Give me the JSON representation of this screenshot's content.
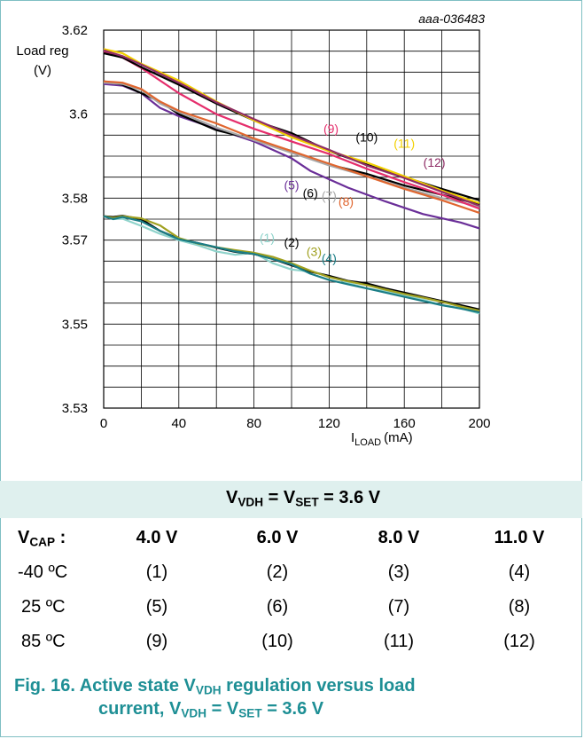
{
  "chart_data": {
    "type": "line",
    "figure_id": "aaa-036483",
    "ylabel_line1": "Load reg",
    "ylabel_line2": "(V)",
    "xlabel_main": "I",
    "xlabel_sub": "LOAD",
    "xlabel_unit": "(mA)",
    "xlim": [
      0,
      200
    ],
    "ylim": [
      3.53,
      3.62
    ],
    "x_ticks": [
      "0",
      "40",
      "80",
      "120",
      "160",
      "200"
    ],
    "y_ticks": [
      "3.53",
      "3.55",
      "3.57",
      "3.58",
      "3.6",
      "3.62"
    ],
    "y_tick_values": [
      3.53,
      3.55,
      3.57,
      3.58,
      3.6,
      3.62
    ],
    "grid": true,
    "series": [
      {
        "name": "(1)",
        "color": "#8fd3cb",
        "x": [
          0,
          5,
          10,
          20,
          30,
          40,
          50,
          60,
          70,
          80,
          90,
          100,
          110,
          120,
          130,
          140,
          150,
          160,
          170,
          180,
          190,
          200
        ],
        "y": [
          3.5757,
          3.575,
          3.5751,
          3.5734,
          3.5715,
          3.57,
          3.5688,
          3.5673,
          3.5665,
          3.567,
          3.5645,
          3.563,
          3.5625,
          3.5615,
          3.5598,
          3.5585,
          3.5578,
          3.5568,
          3.5558,
          3.5545,
          3.5538,
          3.5525
        ]
      },
      {
        "name": "(2)",
        "color": "#000000",
        "x": [
          0,
          5,
          10,
          20,
          30,
          40,
          50,
          60,
          70,
          80,
          90,
          100,
          110,
          120,
          130,
          140,
          150,
          160,
          170,
          180,
          190,
          200
        ],
        "y": [
          3.5757,
          3.5755,
          3.5758,
          3.575,
          3.5722,
          3.5703,
          3.5693,
          3.5682,
          3.5672,
          3.5667,
          3.5655,
          3.564,
          3.5625,
          3.5615,
          3.5603,
          3.5597,
          3.5585,
          3.5575,
          3.5565,
          3.5555,
          3.5545,
          3.5535
        ]
      },
      {
        "name": "(3)",
        "color": "#a0a020",
        "x": [
          0,
          5,
          10,
          20,
          30,
          40,
          50,
          60,
          70,
          80,
          90,
          100,
          110,
          120,
          130,
          140,
          150,
          160,
          170,
          180,
          190,
          200
        ],
        "y": [
          3.5757,
          3.5753,
          3.5757,
          3.5752,
          3.5735,
          3.5705,
          3.5692,
          3.5683,
          3.5676,
          3.567,
          3.566,
          3.5645,
          3.5627,
          3.5612,
          3.5602,
          3.5593,
          3.5582,
          3.5572,
          3.5563,
          3.5553,
          3.5542,
          3.5532
        ]
      },
      {
        "name": "(4)",
        "color": "#1a7d86",
        "x": [
          0,
          5,
          10,
          20,
          30,
          40,
          50,
          60,
          70,
          80,
          90,
          100,
          110,
          120,
          130,
          140,
          150,
          160,
          170,
          180,
          190,
          200
        ],
        "y": [
          3.5757,
          3.575,
          3.5755,
          3.5745,
          3.5722,
          3.5702,
          3.5693,
          3.5683,
          3.5673,
          3.5667,
          3.5655,
          3.5642,
          3.562,
          3.5605,
          3.5595,
          3.5585,
          3.5575,
          3.5565,
          3.5555,
          3.5545,
          3.5537,
          3.5528
        ]
      },
      {
        "name": "(5)",
        "color": "#6a2e98",
        "x": [
          0,
          10,
          20,
          30,
          40,
          60,
          80,
          100,
          110,
          130,
          150,
          170,
          190,
          200
        ],
        "y": [
          3.6072,
          3.6068,
          3.605,
          3.6015,
          3.5995,
          3.5965,
          3.5935,
          3.5895,
          3.5865,
          3.5825,
          3.5792,
          3.5762,
          3.5742,
          3.5728
        ]
      },
      {
        "name": "(6)",
        "color": "#000000",
        "x": [
          0,
          10,
          20,
          30,
          40,
          60,
          80,
          100,
          120,
          140,
          160,
          180,
          200
        ],
        "y": [
          3.6078,
          3.607,
          3.605,
          3.603,
          3.6,
          3.5962,
          3.594,
          3.5912,
          3.588,
          3.5858,
          3.583,
          3.5808,
          3.5785
        ]
      },
      {
        "name": "(7)",
        "color": "#a8a8a8",
        "x": [
          0,
          10,
          20,
          30,
          40,
          60,
          80,
          100,
          120,
          140,
          160,
          180,
          200
        ],
        "y": [
          3.6075,
          3.6072,
          3.6058,
          3.6025,
          3.6005,
          3.5968,
          3.5938,
          3.5908,
          3.5878,
          3.5852,
          3.5825,
          3.58,
          3.578
        ]
      },
      {
        "name": "(8)",
        "color": "#e0662f",
        "x": [
          0,
          10,
          20,
          30,
          40,
          60,
          80,
          100,
          120,
          140,
          160,
          180,
          200
        ],
        "y": [
          3.6078,
          3.6075,
          3.606,
          3.603,
          3.6008,
          3.5978,
          3.5942,
          3.5912,
          3.5882,
          3.5852,
          3.5822,
          3.5795,
          3.5765
        ]
      },
      {
        "name": "(9)",
        "color": "#e52e6c",
        "x": [
          0,
          10,
          20,
          40,
          60,
          80,
          100,
          120,
          140,
          160,
          180,
          200
        ],
        "y": [
          3.6148,
          3.6135,
          3.611,
          3.605,
          3.6,
          3.5965,
          3.5935,
          3.5905,
          3.587,
          3.5838,
          3.5808,
          3.5775
        ]
      },
      {
        "name": "(10)",
        "color": "#000000",
        "x": [
          0,
          10,
          20,
          40,
          60,
          80,
          100,
          120,
          140,
          160,
          180,
          200
        ],
        "y": [
          3.6145,
          3.6135,
          3.6112,
          3.607,
          3.6025,
          3.5985,
          3.5955,
          3.5912,
          3.588,
          3.585,
          3.5822,
          3.5795
        ]
      },
      {
        "name": "(11)",
        "color": "#f2d000",
        "x": [
          0,
          10,
          20,
          40,
          60,
          80,
          100,
          120,
          140,
          160,
          180,
          200
        ],
        "y": [
          3.6155,
          3.6145,
          3.612,
          3.608,
          3.603,
          3.5985,
          3.5945,
          3.5912,
          3.5885,
          3.5852,
          3.5818,
          3.5788
        ]
      },
      {
        "name": "(12)",
        "color": "#8f2d66",
        "x": [
          0,
          10,
          20,
          40,
          60,
          80,
          100,
          120,
          140,
          160,
          180,
          200
        ],
        "y": [
          3.6152,
          3.6138,
          3.6118,
          3.6075,
          3.6028,
          3.5988,
          3.595,
          3.5915,
          3.5878,
          3.5848,
          3.5815,
          3.5782
        ]
      }
    ],
    "annotations": [
      {
        "text": "(1)",
        "x": 87,
        "y": 3.5695,
        "color": "#8fd3cb"
      },
      {
        "text": "(2)",
        "x": 100,
        "y": 3.5685,
        "color": "#000000"
      },
      {
        "text": "(3)",
        "x": 112,
        "y": 3.5662,
        "color": "#a0a020"
      },
      {
        "text": "(4)",
        "x": 120,
        "y": 3.5646,
        "color": "#1a7d86"
      },
      {
        "text": "(5)",
        "x": 100,
        "y": 3.5821,
        "color": "#6a2e98"
      },
      {
        "text": "(6)",
        "x": 110,
        "y": 3.5802,
        "color": "#000000"
      },
      {
        "text": "(7)",
        "x": 120,
        "y": 3.5795,
        "color": "#a8a8a8"
      },
      {
        "text": "(8)",
        "x": 129,
        "y": 3.5782,
        "color": "#e0662f"
      },
      {
        "text": "(9)",
        "x": 121,
        "y": 3.5955,
        "color": "#e52e6c"
      },
      {
        "text": "(10)",
        "x": 140,
        "y": 3.5935,
        "color": "#000000"
      },
      {
        "text": "(11)",
        "x": 160,
        "y": 3.592,
        "color": "#f2d000"
      },
      {
        "text": "(12)",
        "x": 176,
        "y": 3.5875,
        "color": "#8f2d66"
      }
    ]
  },
  "table": {
    "title_v": "V",
    "title_vdh_sub": "VDH",
    "title_eq": " = V",
    "title_set_sub": "SET",
    "title_val": " = 3.6 V",
    "vcap_label": "V",
    "vcap_sub": "CAP",
    "vcap_colon": " :",
    "columns": [
      "4.0 V",
      "6.0 V",
      "8.0 V",
      "11.0 V"
    ],
    "rows": [
      {
        "label": "-40 ºC",
        "cells": [
          "(1)",
          "(2)",
          "(3)",
          "(4)"
        ]
      },
      {
        "label": "25 ºC",
        "cells": [
          "(5)",
          "(6)",
          "(7)",
          "(8)"
        ]
      },
      {
        "label": "85 ºC",
        "cells": [
          "(9)",
          "(10)",
          "(11)",
          "(12)"
        ]
      }
    ]
  },
  "caption": {
    "prefix": "Fig. 16.  Active state V",
    "sub1": "VDH",
    "mid1": " regulation versus load",
    "line2_start": "current, V",
    "sub2": "VDH",
    "mid2": " = V",
    "sub3": "SET",
    "end": " = 3.6 V"
  }
}
